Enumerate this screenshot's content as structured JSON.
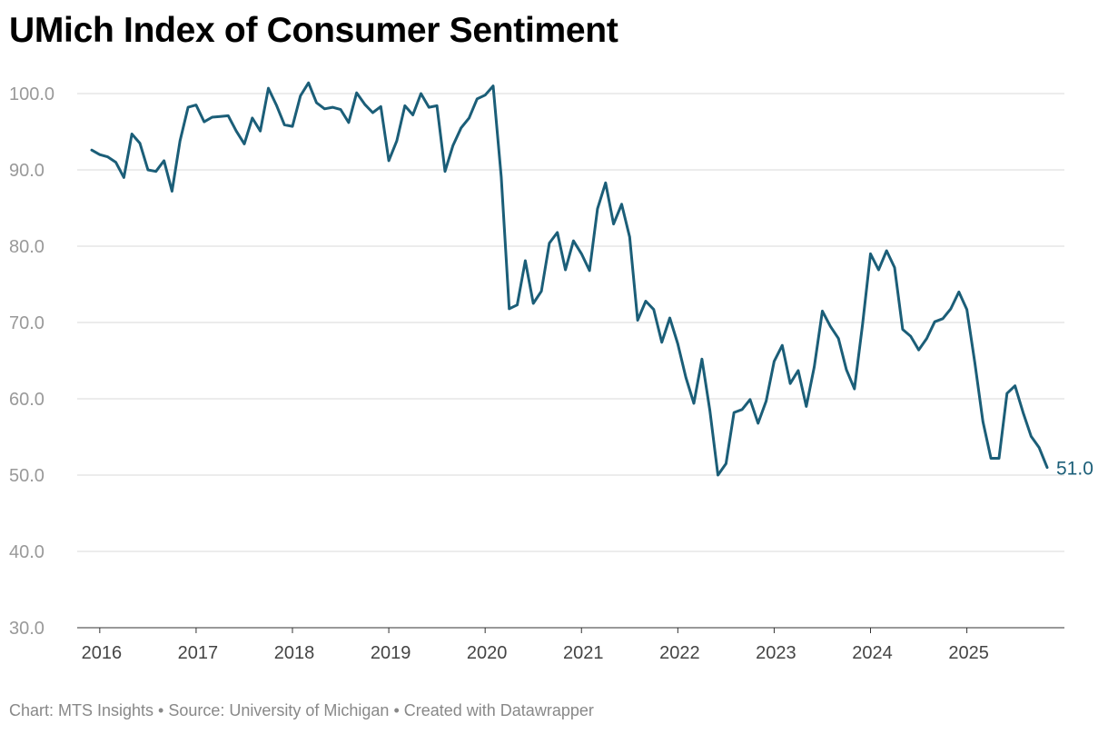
{
  "chart_data": {
    "type": "line",
    "title": "UMich Index of Consumer Sentiment",
    "xlabel": "",
    "ylabel": "",
    "ylim": [
      30,
      100
    ],
    "yticks": [
      "30.0",
      "40.0",
      "50.0",
      "60.0",
      "70.0",
      "80.0",
      "90.0",
      "100.0"
    ],
    "xticks": [
      "2016",
      "2017",
      "2018",
      "2019",
      "2020",
      "2021",
      "2022",
      "2023",
      "2024",
      "2025"
    ],
    "grid": "horizontal",
    "line_color": "#1b5e78",
    "start_month": "2015-12",
    "end_label": "51.0",
    "values": [
      92.6,
      92.0,
      91.7,
      91.0,
      89.0,
      94.7,
      93.5,
      90.0,
      89.8,
      91.2,
      87.2,
      93.8,
      98.2,
      98.5,
      96.3,
      96.9,
      97.0,
      97.1,
      95.1,
      93.4,
      96.8,
      95.1,
      100.7,
      98.5,
      95.9,
      95.7,
      99.7,
      101.4,
      98.8,
      98.0,
      98.2,
      97.9,
      96.2,
      100.1,
      98.6,
      97.5,
      98.3,
      91.2,
      93.8,
      98.4,
      97.2,
      100.0,
      98.2,
      98.4,
      89.8,
      93.2,
      95.5,
      96.8,
      99.3,
      99.8,
      101.0,
      89.1,
      71.8,
      72.3,
      78.1,
      72.5,
      74.1,
      80.4,
      81.8,
      76.9,
      80.7,
      79.0,
      76.8,
      84.9,
      88.3,
      82.9,
      85.5,
      81.2,
      70.3,
      72.8,
      71.7,
      67.4,
      70.6,
      67.2,
      62.8,
      59.4,
      65.2,
      58.4,
      50.0,
      51.5,
      58.2,
      58.6,
      59.9,
      56.8,
      59.7,
      64.9,
      67.0,
      62.0,
      63.7,
      59.0,
      64.2,
      71.5,
      69.5,
      67.9,
      63.8,
      61.3,
      69.7,
      79.0,
      76.9,
      79.4,
      77.2,
      69.1,
      68.2,
      66.4,
      67.9,
      70.1,
      70.5,
      71.8,
      74.0,
      71.7,
      64.7,
      57.0,
      52.2,
      52.2,
      60.7,
      61.7,
      58.2,
      55.1,
      53.6,
      51.0
    ]
  },
  "footer": "Chart: MTS Insights • Source: University of Michigan • Created with Datawrapper"
}
